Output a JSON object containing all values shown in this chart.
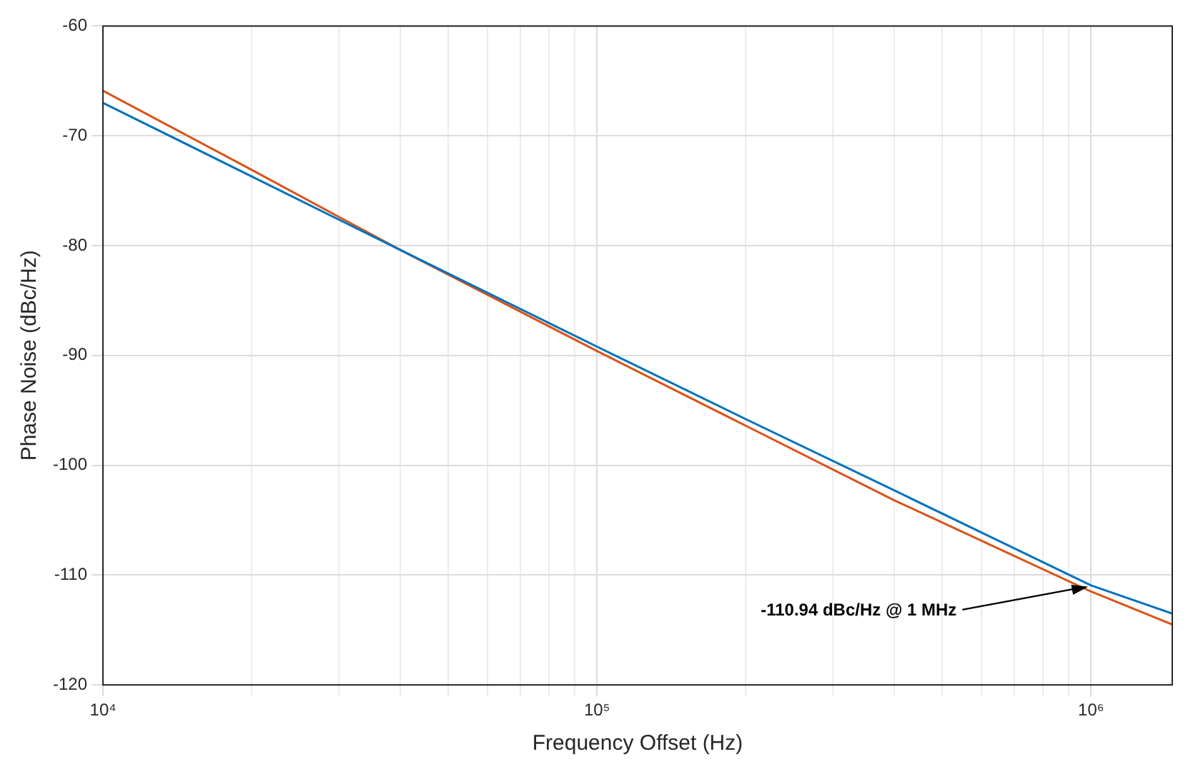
{
  "chart_data": {
    "type": "line",
    "xlabel": "Frequency Offset (Hz)",
    "ylabel": "Phase Noise (dBc/Hz)",
    "log": "x",
    "xlim": [
      10000,
      1460000
    ],
    "ylim": [
      -120,
      -60
    ],
    "xticks": [
      {
        "value": 10000,
        "label": "10⁴"
      },
      {
        "value": 20000,
        "label": null
      },
      {
        "value": 30000,
        "label": null
      },
      {
        "value": 40000,
        "label": null
      },
      {
        "value": 50000,
        "label": null
      },
      {
        "value": 60000,
        "label": null
      },
      {
        "value": 70000,
        "label": null
      },
      {
        "value": 80000,
        "label": null
      },
      {
        "value": 90000,
        "label": null
      },
      {
        "value": 100000,
        "label": "10⁵"
      },
      {
        "value": 200000,
        "label": null
      },
      {
        "value": 300000,
        "label": null
      },
      {
        "value": 400000,
        "label": null
      },
      {
        "value": 500000,
        "label": null
      },
      {
        "value": 600000,
        "label": null
      },
      {
        "value": 700000,
        "label": null
      },
      {
        "value": 800000,
        "label": null
      },
      {
        "value": 900000,
        "label": null
      },
      {
        "value": 1000000,
        "label": "10⁶"
      }
    ],
    "yticks": [
      -120,
      -110,
      -100,
      -90,
      -80,
      -70,
      -60
    ],
    "grid": true,
    "line_style": "solid",
    "marker": "none",
    "annotations": [
      {
        "text": "-110.94 dBc/Hz @ 1 MHz",
        "x": 1000000,
        "y": -110.94
      }
    ],
    "series": [
      {
        "color": "#0072bd",
        "x": [
          10000,
          20000,
          40000,
          100000,
          200000,
          400000,
          1000000,
          1460000
        ],
        "values": [
          -67.0,
          -73.7,
          -80.4,
          -89.2,
          -95.8,
          -102.3,
          -110.94,
          -113.5
        ]
      },
      {
        "color": "#d95319",
        "x": [
          10000,
          20000,
          40000,
          100000,
          200000,
          400000,
          1000000,
          1460000
        ],
        "values": [
          -65.9,
          -73.1,
          -80.4,
          -89.6,
          -96.4,
          -103.2,
          -111.5,
          -114.5
        ]
      }
    ]
  }
}
